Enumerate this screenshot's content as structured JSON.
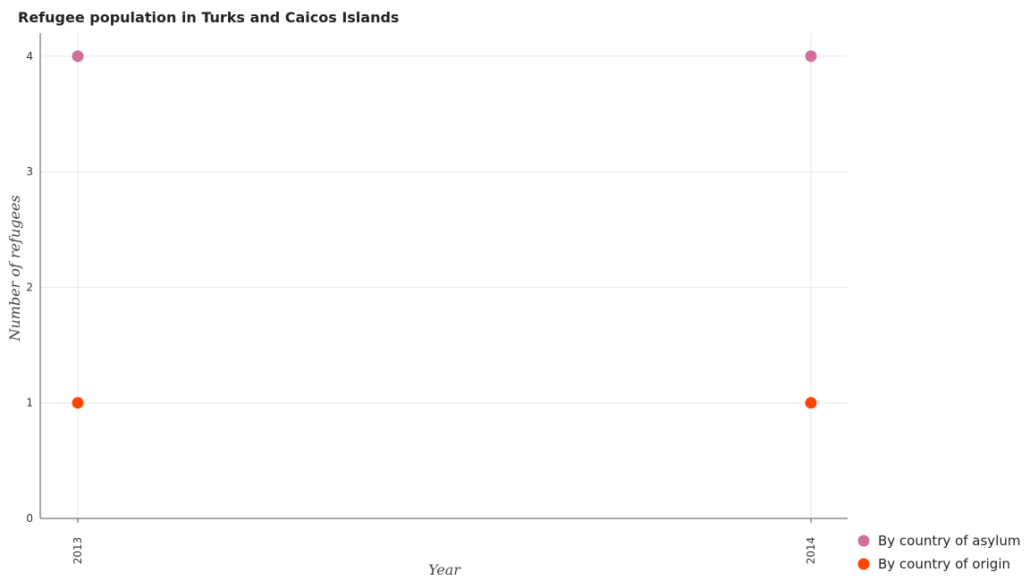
{
  "chart_data": {
    "type": "scatter",
    "title": "Refugee population in Turks and Caicos Islands",
    "xlabel": "Year",
    "ylabel": "Number of refugees",
    "categories": [
      "2013",
      "2014"
    ],
    "series": [
      {
        "name": "By country of asylum",
        "values": [
          4,
          4
        ],
        "color": "#d1709c"
      },
      {
        "name": "By country of origin",
        "values": [
          1,
          1
        ],
        "color": "#ff4500"
      }
    ],
    "yticks": [
      "0",
      "1",
      "2",
      "3",
      "4"
    ],
    "ylim": [
      0,
      4.2
    ],
    "grid": true,
    "legend_position": "bottom-right"
  }
}
